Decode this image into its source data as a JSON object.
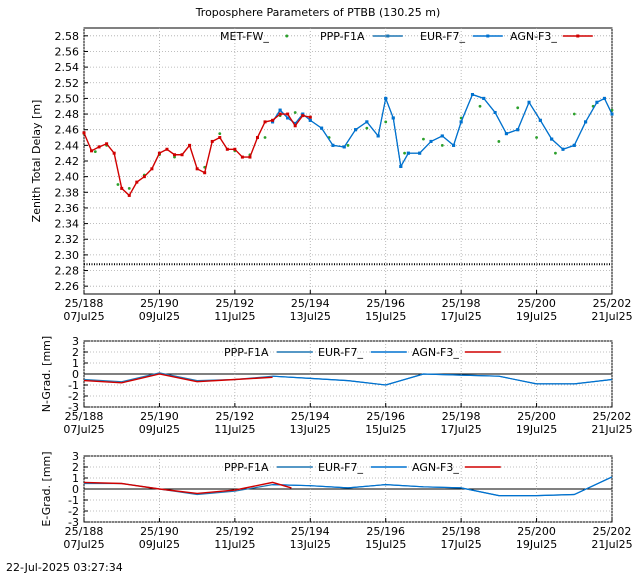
{
  "chart_data": [
    {
      "id": "ztd",
      "type": "line",
      "title": "Troposphere Parameters of PTBB (130.25 m)",
      "ylabel": "Zenith Total Delay [m]",
      "xlabel": "",
      "ylim": [
        2.25,
        2.59
      ],
      "xlim": [
        188,
        202
      ],
      "yticks": [
        2.26,
        2.28,
        2.3,
        2.32,
        2.34,
        2.36,
        2.38,
        2.4,
        2.42,
        2.44,
        2.46,
        2.48,
        2.5,
        2.52,
        2.54,
        2.56,
        2.58
      ],
      "ytick_labels": [
        "2.26",
        "2.28",
        "2.30",
        "2.32",
        "2.34",
        "2.36",
        "2.38",
        "2.40",
        "2.42",
        "2.44",
        "2.46",
        "2.48",
        "2.50",
        "2.52",
        "2.54",
        "2.56",
        "2.58"
      ],
      "grid": true,
      "legend": [
        "MET-FW_",
        "PPP-F1A",
        "EUR-F7_",
        "AGN-F3_"
      ],
      "series": [
        {
          "name": "MET-FW_",
          "color": "#2ca02c",
          "x": [
            188.0,
            188.3,
            188.6,
            188.9,
            189.2,
            189.6,
            190.0,
            190.4,
            190.8,
            191.2,
            191.6,
            192.0,
            192.4,
            192.8,
            193.2,
            193.6,
            194.0,
            194.5,
            195.0,
            195.5,
            196.0,
            196.5,
            197.0,
            197.5,
            198.0,
            198.5,
            199.0,
            199.5,
            200.0,
            200.5,
            201.0,
            201.5,
            202.0
          ],
          "values": [
            2.455,
            2.432,
            2.44,
            2.39,
            2.385,
            2.402,
            2.428,
            2.425,
            2.44,
            2.412,
            2.455,
            2.433,
            2.428,
            2.45,
            2.478,
            2.482,
            2.476,
            2.45,
            2.44,
            2.462,
            2.47,
            2.43,
            2.448,
            2.44,
            2.475,
            2.49,
            2.445,
            2.488,
            2.45,
            2.43,
            2.48,
            2.49,
            2.485
          ]
        },
        {
          "name": "PPP-F1A",
          "color": "#1f77b4",
          "x": [
            193.0,
            193.2,
            193.4,
            193.6,
            193.8,
            194.0,
            194.3,
            194.6,
            194.9,
            195.2,
            195.5,
            195.8,
            196.0,
            196.2,
            196.4,
            196.6,
            196.9,
            197.2,
            197.5,
            197.8,
            198.0,
            198.3,
            198.6,
            198.9,
            199.2,
            199.5,
            199.8,
            200.1,
            200.4,
            200.7,
            201.0,
            201.3,
            201.6,
            201.8,
            202.0
          ],
          "values": [
            2.47,
            2.485,
            2.475,
            2.468,
            2.48,
            2.472,
            2.462,
            2.44,
            2.438,
            2.46,
            2.47,
            2.452,
            2.5,
            2.475,
            2.413,
            2.43,
            2.43,
            2.445,
            2.452,
            2.44,
            2.47,
            2.505,
            2.5,
            2.482,
            2.455,
            2.46,
            2.495,
            2.472,
            2.448,
            2.435,
            2.44,
            2.47,
            2.495,
            2.5,
            2.48
          ]
        },
        {
          "name": "EUR-F7_",
          "color": "#0072d0",
          "x": [
            193.0,
            193.2,
            193.4,
            193.6,
            193.8,
            194.0,
            194.3,
            194.6,
            194.9,
            195.2,
            195.5,
            195.8,
            196.0,
            196.2,
            196.4,
            196.6,
            196.9,
            197.2,
            197.5,
            197.8,
            198.0,
            198.3,
            198.6,
            198.9,
            199.2,
            199.5,
            199.8,
            200.1,
            200.4,
            200.7,
            201.0,
            201.3,
            201.6,
            201.8,
            202.0
          ],
          "values": [
            2.47,
            2.485,
            2.475,
            2.468,
            2.48,
            2.472,
            2.462,
            2.44,
            2.438,
            2.46,
            2.47,
            2.452,
            2.5,
            2.475,
            2.413,
            2.43,
            2.43,
            2.445,
            2.452,
            2.44,
            2.47,
            2.505,
            2.5,
            2.482,
            2.455,
            2.46,
            2.495,
            2.472,
            2.448,
            2.435,
            2.44,
            2.47,
            2.495,
            2.5,
            2.48
          ]
        },
        {
          "name": "AGN-F3_",
          "color": "#d00000",
          "x": [
            188.0,
            188.2,
            188.4,
            188.6,
            188.8,
            189.0,
            189.2,
            189.4,
            189.6,
            189.8,
            190.0,
            190.2,
            190.4,
            190.6,
            190.8,
            191.0,
            191.2,
            191.4,
            191.6,
            191.8,
            192.0,
            192.2,
            192.4,
            192.6,
            192.8,
            193.0,
            193.2,
            193.4,
            193.6,
            193.8,
            194.0
          ],
          "values": [
            2.456,
            2.433,
            2.438,
            2.442,
            2.43,
            2.385,
            2.376,
            2.393,
            2.4,
            2.41,
            2.43,
            2.435,
            2.428,
            2.428,
            2.44,
            2.41,
            2.405,
            2.445,
            2.45,
            2.435,
            2.435,
            2.425,
            2.425,
            2.45,
            2.47,
            2.472,
            2.48,
            2.48,
            2.465,
            2.478,
            2.476
          ]
        },
        {
          "name": "baseline",
          "color": "#000000",
          "x": [
            188,
            202
          ],
          "values": [
            2.288,
            2.288
          ]
        }
      ]
    },
    {
      "id": "ngrad",
      "type": "line",
      "title": "",
      "ylabel": "N-Grad. [mm]",
      "ylim": [
        -3,
        3
      ],
      "xlim": [
        188,
        202
      ],
      "yticks": [
        -3,
        -2,
        -1,
        0,
        1,
        2,
        3
      ],
      "ytick_labels": [
        "-3",
        "-2",
        "-1",
        "0",
        "1",
        "2",
        "3"
      ],
      "grid": true,
      "legend": [
        "PPP-F1A",
        "EUR-F7_",
        "AGN-F3_"
      ],
      "series": [
        {
          "name": "PPP-F1A",
          "color": "#1f77b4",
          "x": [
            188,
            189,
            190,
            191,
            192,
            193,
            194,
            195,
            196,
            197,
            198,
            199,
            200,
            201,
            202
          ],
          "values": [
            -0.5,
            -0.7,
            0.1,
            -0.6,
            -0.5,
            -0.2,
            -0.4,
            -0.6,
            -1.0,
            0.0,
            -0.1,
            -0.2,
            -0.9,
            -0.9,
            -0.5
          ]
        },
        {
          "name": "EUR-F7_",
          "color": "#0072d0",
          "x": [
            193,
            194,
            195,
            196,
            197,
            198,
            199,
            200,
            201,
            202
          ],
          "values": [
            -0.2,
            -0.4,
            -0.6,
            -1.0,
            0.0,
            -0.1,
            -0.2,
            -0.9,
            -0.9,
            -0.5
          ]
        },
        {
          "name": "AGN-F3_",
          "color": "#d00000",
          "x": [
            188,
            189,
            190,
            191,
            192,
            193
          ],
          "values": [
            -0.6,
            -0.8,
            0.0,
            -0.7,
            -0.5,
            -0.3
          ]
        }
      ]
    },
    {
      "id": "egrad",
      "type": "line",
      "title": "",
      "ylabel": "E-Grad. [mm]",
      "ylim": [
        -3,
        3
      ],
      "xlim": [
        188,
        202
      ],
      "yticks": [
        -3,
        -2,
        -1,
        0,
        1,
        2,
        3
      ],
      "ytick_labels": [
        "-3",
        "-2",
        "-1",
        "0",
        "1",
        "2",
        "3"
      ],
      "grid": true,
      "legend": [
        "PPP-F1A",
        "EUR-F7_",
        "AGN-F3_"
      ],
      "series": [
        {
          "name": "PPP-F1A",
          "color": "#1f77b4",
          "x": [
            188,
            189,
            190,
            191,
            192,
            193,
            194,
            195,
            196,
            197,
            198,
            199,
            200,
            201,
            202
          ],
          "values": [
            0.5,
            0.5,
            0.0,
            -0.5,
            -0.2,
            0.4,
            0.3,
            0.1,
            0.4,
            0.2,
            0.1,
            -0.6,
            -0.6,
            -0.5,
            1.1
          ]
        },
        {
          "name": "EUR-F7_",
          "color": "#0072d0",
          "x": [
            193,
            194,
            195,
            196,
            197,
            198,
            199,
            200,
            201,
            202
          ],
          "values": [
            0.4,
            0.3,
            0.1,
            0.4,
            0.2,
            0.1,
            -0.6,
            -0.6,
            -0.5,
            1.1
          ]
        },
        {
          "name": "AGN-F3_",
          "color": "#d00000",
          "x": [
            188,
            189,
            190,
            191,
            192,
            193,
            193.5
          ],
          "values": [
            0.6,
            0.5,
            0.0,
            -0.4,
            -0.1,
            0.6,
            0.1
          ]
        }
      ]
    }
  ],
  "xaxis": {
    "ticks": [
      188,
      190,
      192,
      194,
      196,
      198,
      200,
      202
    ],
    "labels_top": [
      "25/188",
      "25/190",
      "25/192",
      "25/194",
      "25/196",
      "25/198",
      "25/200",
      "25/202"
    ],
    "labels_bottom": [
      "07Jul25",
      "09Jul25",
      "11Jul25",
      "13Jul25",
      "15Jul25",
      "17Jul25",
      "19Jul25",
      "21Jul25"
    ]
  },
  "footer": {
    "timestamp": "22-Jul-2025 03:27:34"
  }
}
